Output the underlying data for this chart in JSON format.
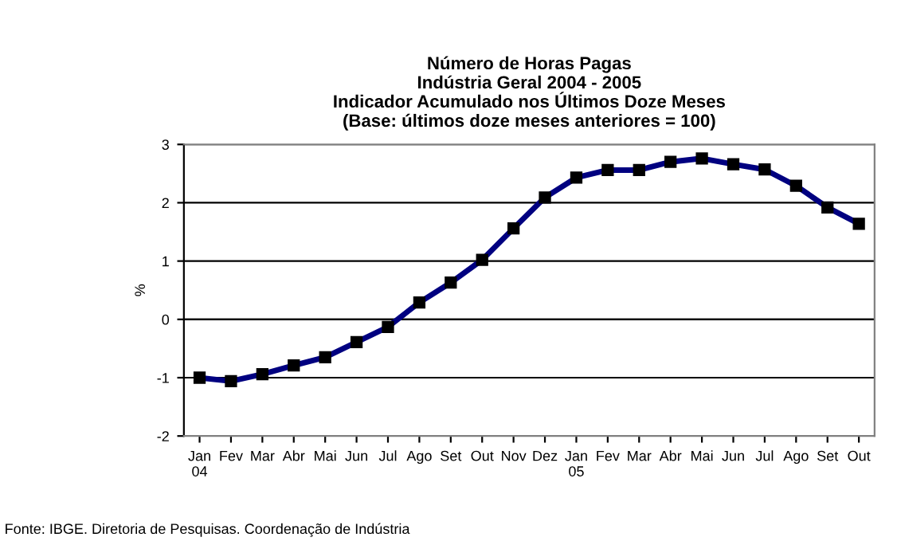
{
  "chart_data": {
    "type": "line",
    "title": "Número de Horas Pagas\nIndústria Geral 2004 - 2005\nIndicador Acumulado nos Últimos Doze Meses\n(Base: últimos doze meses anteriores = 100)",
    "ylabel": "%",
    "categories": [
      "Jan\n04",
      "Fev",
      "Mar",
      "Abr",
      "Mai",
      "Jun",
      "Jul",
      "Ago",
      "Set",
      "Out",
      "Nov",
      "Dez",
      "Jan\n05",
      "Fev",
      "Mar",
      "Abr",
      "Mai",
      "Jun",
      "Jul",
      "Ago",
      "Set",
      "Out"
    ],
    "series": [
      {
        "color": "#000080",
        "values": [
          -1.0,
          -1.06,
          -0.94,
          -0.79,
          -0.65,
          -0.39,
          -0.13,
          0.29,
          0.63,
          1.02,
          1.56,
          2.09,
          2.43,
          2.56,
          2.56,
          2.7,
          2.76,
          2.66,
          2.57,
          2.29,
          1.92,
          1.64
        ]
      }
    ],
    "ylim": [
      -2,
      3
    ],
    "yticks": [
      -2,
      -1,
      0,
      1,
      2,
      3
    ],
    "grid": "y",
    "legend": false,
    "marker": "square",
    "line_style": "solid",
    "annotations": [
      "Fonte: IBGE. Diretoria de Pesquisas. Coordenação de Indústria"
    ]
  }
}
